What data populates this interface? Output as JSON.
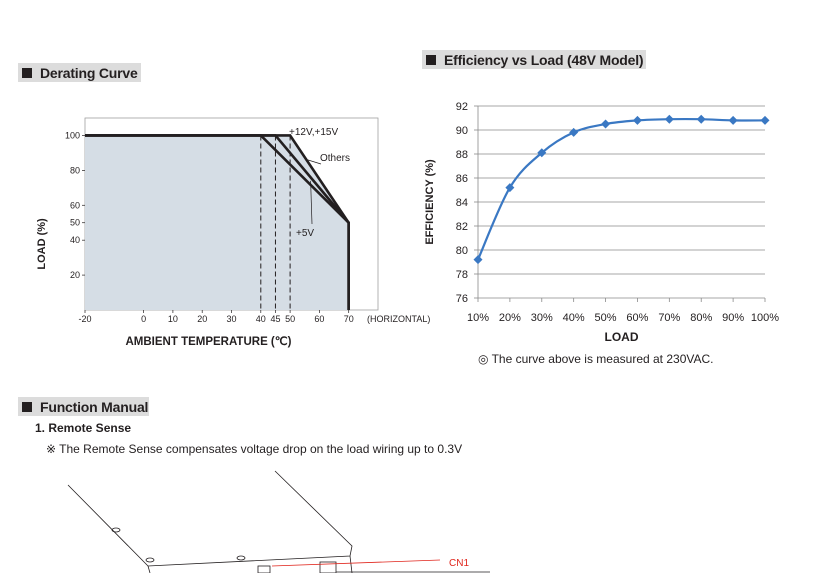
{
  "derating": {
    "section_title": "Derating Curve",
    "chart_data": {
      "type": "line",
      "xlabel": "AMBIENT TEMPERATURE (℃)",
      "xlabel_extra": "(HORIZONTAL)",
      "ylabel": "LOAD (%)",
      "x_ticks": [
        -20,
        0,
        10,
        20,
        30,
        40,
        45,
        50,
        60,
        70
      ],
      "y_ticks": [
        20,
        40,
        50,
        60,
        80,
        100
      ],
      "xlim": [
        -20,
        80
      ],
      "ylim": [
        0,
        110
      ],
      "grid": false,
      "series": [
        {
          "name": "+12V,+15V",
          "x": [
            -20,
            50,
            70,
            70
          ],
          "y": [
            100,
            100,
            50,
            0
          ]
        },
        {
          "name": "Others",
          "x": [
            -20,
            45,
            70,
            70
          ],
          "y": [
            100,
            100,
            50,
            0
          ]
        },
        {
          "name": "+5V",
          "x": [
            -20,
            40,
            70,
            70
          ],
          "y": [
            100,
            100,
            50,
            0
          ]
        }
      ],
      "reference_lines_x": [
        40,
        45,
        50
      ]
    }
  },
  "efficiency": {
    "section_title": "Efficiency vs Load (48V Model)",
    "note": "◎ The curve above is measured at 230VAC.",
    "chart_data": {
      "type": "line",
      "xlabel": "LOAD",
      "ylabel": "EFFICIENCY (%)",
      "categories": [
        "10%",
        "20%",
        "30%",
        "40%",
        "50%",
        "60%",
        "70%",
        "80%",
        "90%",
        "100%"
      ],
      "values": [
        79.2,
        85.2,
        88.1,
        89.8,
        90.5,
        90.8,
        90.9,
        90.9,
        90.8,
        90.8
      ],
      "y_ticks": [
        76,
        78,
        80,
        82,
        84,
        86,
        88,
        90,
        92
      ],
      "ylim": [
        76,
        92
      ],
      "grid": true,
      "color": "#3a78c3"
    }
  },
  "function_manual": {
    "section_title": "Function Manual",
    "subtitle": "1. Remote Sense",
    "note": "※ The Remote Sense compensates voltage drop on the load wiring up to 0.3V",
    "connector_label": "CN1"
  }
}
